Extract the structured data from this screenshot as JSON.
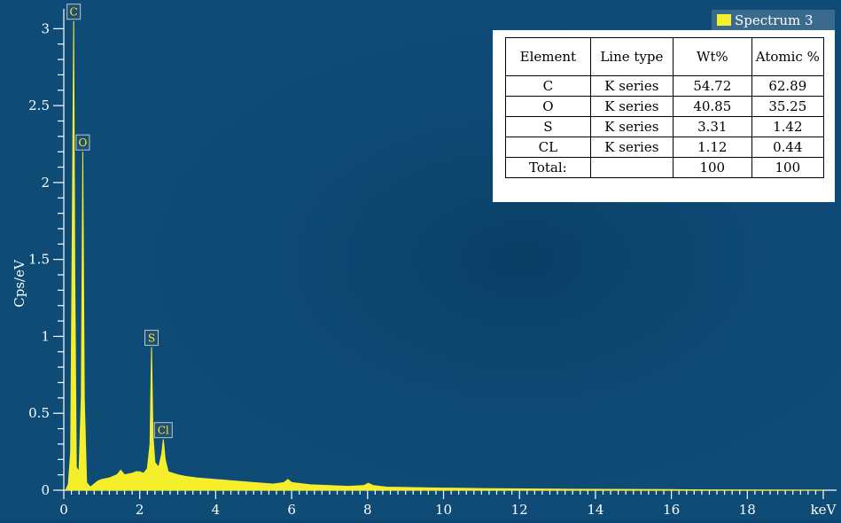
{
  "chart_data": {
    "type": "line",
    "xlabel": "keV",
    "ylabel": "Cps/eV",
    "xlim": [
      0,
      20
    ],
    "ylim": [
      0,
      3.1
    ],
    "x_ticks": [
      "0",
      "2",
      "4",
      "6",
      "8",
      "10",
      "12",
      "14",
      "16",
      "18"
    ],
    "y_ticks": [
      "0",
      "0.5",
      "1",
      "1.5",
      "2",
      "2.5",
      "3"
    ],
    "x_tick_values": [
      0,
      2,
      4,
      6,
      8,
      10,
      12,
      14,
      16,
      18
    ],
    "y_tick_values": [
      0,
      0.5,
      1,
      1.5,
      2,
      2.5,
      3
    ],
    "series": [
      {
        "name": "Spectrum 3",
        "color": "#f5ee2a",
        "points": [
          [
            0.05,
            0.0
          ],
          [
            0.12,
            0.04
          ],
          [
            0.18,
            0.25
          ],
          [
            0.22,
            1.6
          ],
          [
            0.26,
            3.05
          ],
          [
            0.29,
            1.4
          ],
          [
            0.33,
            0.15
          ],
          [
            0.4,
            0.12
          ],
          [
            0.46,
            0.6
          ],
          [
            0.5,
            2.2
          ],
          [
            0.54,
            0.6
          ],
          [
            0.6,
            0.05
          ],
          [
            0.7,
            0.02
          ],
          [
            0.8,
            0.04
          ],
          [
            0.9,
            0.06
          ],
          [
            1.0,
            0.07
          ],
          [
            1.2,
            0.08
          ],
          [
            1.4,
            0.1
          ],
          [
            1.5,
            0.13
          ],
          [
            1.6,
            0.1
          ],
          [
            1.8,
            0.11
          ],
          [
            1.9,
            0.12
          ],
          [
            2.0,
            0.12
          ],
          [
            2.1,
            0.11
          ],
          [
            2.2,
            0.14
          ],
          [
            2.27,
            0.3
          ],
          [
            2.31,
            0.93
          ],
          [
            2.35,
            0.35
          ],
          [
            2.4,
            0.18
          ],
          [
            2.5,
            0.15
          ],
          [
            2.58,
            0.24
          ],
          [
            2.62,
            0.33
          ],
          [
            2.67,
            0.2
          ],
          [
            2.75,
            0.12
          ],
          [
            3.0,
            0.1
          ],
          [
            3.2,
            0.09
          ],
          [
            3.5,
            0.08
          ],
          [
            4.0,
            0.07
          ],
          [
            4.5,
            0.06
          ],
          [
            5.0,
            0.05
          ],
          [
            5.5,
            0.04
          ],
          [
            5.8,
            0.05
          ],
          [
            5.9,
            0.07
          ],
          [
            6.0,
            0.05
          ],
          [
            6.5,
            0.035
          ],
          [
            7.0,
            0.03
          ],
          [
            7.5,
            0.025
          ],
          [
            7.9,
            0.03
          ],
          [
            8.02,
            0.045
          ],
          [
            8.15,
            0.03
          ],
          [
            8.5,
            0.02
          ],
          [
            9.0,
            0.018
          ],
          [
            10.0,
            0.014
          ],
          [
            11.0,
            0.011
          ],
          [
            12.0,
            0.009
          ],
          [
            13.0,
            0.007
          ],
          [
            14.0,
            0.006
          ],
          [
            15.0,
            0.005
          ],
          [
            16.0,
            0.004
          ],
          [
            17.0,
            0.002
          ],
          [
            20.0,
            0.0
          ]
        ]
      }
    ],
    "peak_labels": [
      {
        "label": "C",
        "x": 0.26,
        "y": 3.05
      },
      {
        "label": "O",
        "x": 0.5,
        "y": 2.2
      },
      {
        "label": "S",
        "x": 2.31,
        "y": 0.93
      },
      {
        "label": "Cl",
        "x": 2.62,
        "y": 0.33
      }
    ],
    "legend": "top-right",
    "grid": false
  },
  "legend": {
    "label": "Spectrum 3",
    "color": "#f5ee2a"
  },
  "table": {
    "headers": {
      "element": "Element",
      "line_type": "Line type",
      "wt": "Wt%",
      "atomic": "Atomic %"
    },
    "rows": [
      {
        "element": "C",
        "line_type": "K series",
        "wt": "54.72",
        "atomic": "62.89"
      },
      {
        "element": "O",
        "line_type": "K series",
        "wt": "40.85",
        "atomic": "35.25"
      },
      {
        "element": "S",
        "line_type": "K series",
        "wt": "3.31",
        "atomic": "1.42"
      },
      {
        "element": "CL",
        "line_type": "K series",
        "wt": "1.12",
        "atomic": "0.44"
      },
      {
        "element": "Total:",
        "line_type": "",
        "wt": "100",
        "atomic": "100"
      }
    ]
  },
  "colors": {
    "background": "#0d4670",
    "spectrum": "#f5ee2a",
    "axis": "#ffffff"
  }
}
